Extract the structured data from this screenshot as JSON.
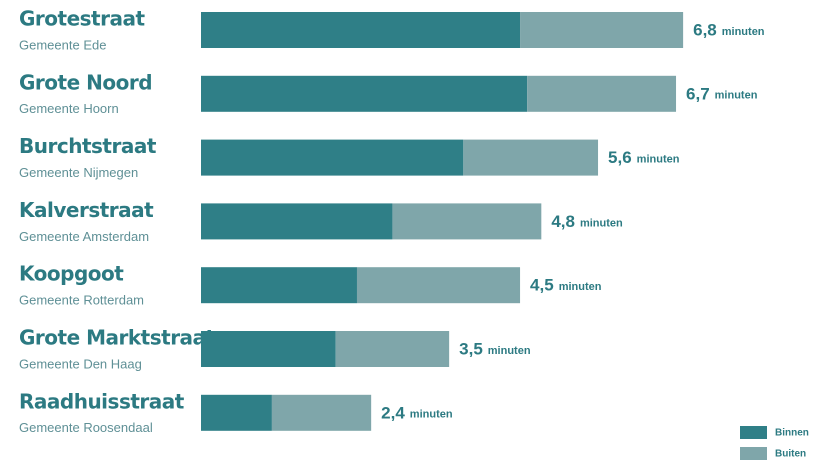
{
  "chart_data": {
    "type": "stacked-bar-horizontal",
    "categories": [
      "Grotestraat",
      "Grote Noord",
      "Burchtstraat",
      "Kalverstraat",
      "Koopgoot",
      "Grote Marktstraat",
      "Raadhuisstraat"
    ],
    "category_subtitles": [
      "Gemeente Ede",
      "Gemeente Hoorn",
      "Gemeente Nijmegen",
      "Gemeente Amsterdam",
      "Gemeente Rotterdam",
      "Gemeente Den Haag",
      "Gemeente Roosendaal"
    ],
    "series": [
      {
        "name": "Binnen",
        "color": "#2f7f87",
        "values": [
          4.5,
          4.6,
          3.7,
          2.7,
          2.2,
          1.9,
          1.0
        ]
      },
      {
        "name": "Buiten",
        "color": "#7fa6aa",
        "values": [
          2.3,
          2.1,
          1.9,
          2.1,
          2.3,
          1.6,
          1.4
        ]
      }
    ],
    "totals": [
      6.8,
      6.7,
      5.6,
      4.8,
      4.5,
      3.5,
      2.4
    ],
    "value_labels": [
      "6,8",
      "6,7",
      "5,6",
      "4,8",
      "4,5",
      "3,5",
      "2,4"
    ],
    "unit_label": "minuten",
    "legend": "bottom-right"
  }
}
